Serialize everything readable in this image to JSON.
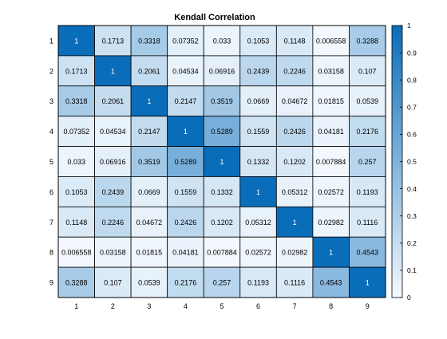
{
  "chart_data": {
    "type": "heatmap",
    "title": "Kendall Correlation",
    "x_tick_labels": [
      "1",
      "2",
      "3",
      "4",
      "5",
      "6",
      "7",
      "8",
      "9"
    ],
    "y_tick_labels": [
      "1",
      "2",
      "3",
      "4",
      "5",
      "6",
      "7",
      "8",
      "9"
    ],
    "cell_labels": [
      [
        "1",
        "0.1713",
        "0.3318",
        "0.07352",
        "0.033",
        "0.1053",
        "0.1148",
        "0.006558",
        "0.3288"
      ],
      [
        "0.1713",
        "1",
        "0.2061",
        "0.04534",
        "0.06916",
        "0.2439",
        "0.2246",
        "0.03158",
        "0.107"
      ],
      [
        "0.3318",
        "0.2061",
        "1",
        "0.2147",
        "0.3519",
        "0.0669",
        "0.04672",
        "0.01815",
        "0.0539"
      ],
      [
        "0.07352",
        "0.04534",
        "0.2147",
        "1",
        "0.5289",
        "0.1559",
        "0.2426",
        "0.04181",
        "0.2176"
      ],
      [
        "0.033",
        "0.06916",
        "0.3519",
        "0.5289",
        "1",
        "0.1332",
        "0.1202",
        "0.007884",
        "0.257"
      ],
      [
        "0.1053",
        "0.2439",
        "0.0669",
        "0.1559",
        "0.1332",
        "1",
        "0.05312",
        "0.02572",
        "0.1193"
      ],
      [
        "0.1148",
        "0.2246",
        "0.04672",
        "0.2426",
        "0.1202",
        "0.05312",
        "1",
        "0.02982",
        "0.1116"
      ],
      [
        "0.006558",
        "0.03158",
        "0.01815",
        "0.04181",
        "0.007884",
        "0.02572",
        "0.02982",
        "1",
        "0.4543"
      ],
      [
        "0.3288",
        "0.107",
        "0.0539",
        "0.2176",
        "0.257",
        "0.1193",
        "0.1116",
        "0.4543",
        "1"
      ]
    ],
    "colorbar": {
      "range": [
        0,
        1
      ],
      "tick_labels": [
        "0",
        "0.1",
        "0.2",
        "0.3",
        "0.4",
        "0.5",
        "0.6",
        "0.7",
        "0.8",
        "0.9",
        "1"
      ],
      "color_low": "#f4f9fe",
      "color_high": "#0a6dba"
    },
    "grid_line_color": "#000000"
  }
}
